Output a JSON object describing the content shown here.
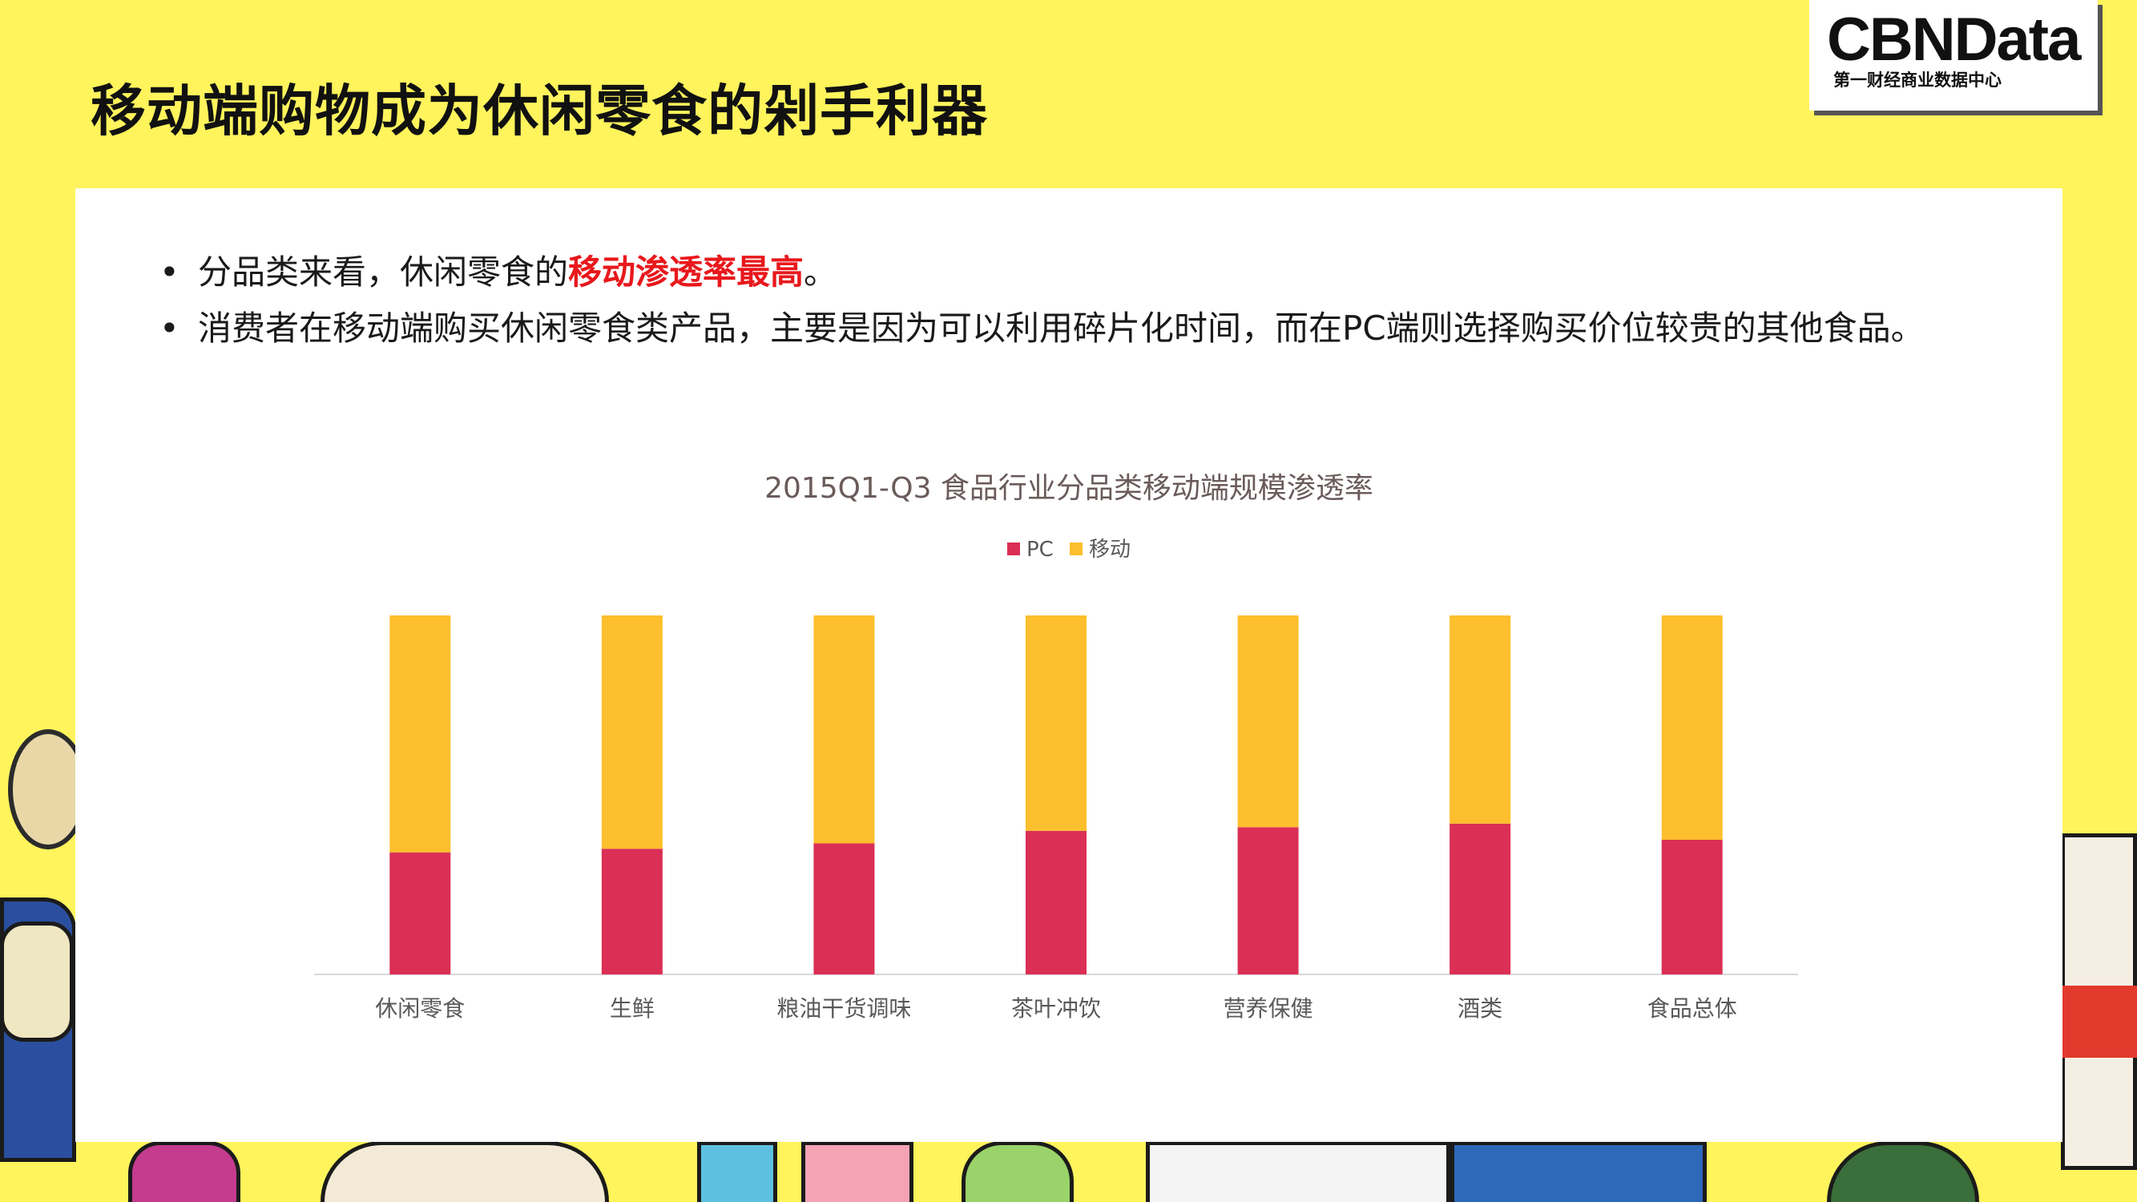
{
  "slide": {
    "title": "移动端购物成为休闲零食的剁手利器"
  },
  "logo": {
    "main": "CBNData",
    "sub": "第一财经商业数据中心"
  },
  "bullets": [
    {
      "before": "分品类来看，休闲零食的",
      "highlight": "移动渗透率最高",
      "after": "。"
    },
    {
      "before": "消费者在移动端购买休闲零食类产品，主要是因为可以利用碎片化时间，而在PC端则选择购买价位较贵的其他食品。",
      "highlight": "",
      "after": ""
    }
  ],
  "bullet_symbol": "•",
  "colors": {
    "background": "#FFF45C",
    "pc": "#DB2F55",
    "mobile": "#FDBF2D",
    "highlight": "#E8181C"
  },
  "chart_data": {
    "type": "bar",
    "stacked": true,
    "title": "2015Q1-Q3 食品行业分品类移动端规模渗透率",
    "categories": [
      "休闲零食",
      "生鲜",
      "粮油干货调味",
      "茶叶冲饮",
      "营养保健",
      "酒类",
      "食品总体"
    ],
    "series": [
      {
        "name": "PC",
        "color": "#DB2F55",
        "values": [
          34,
          35,
          36.5,
          40,
          41,
          42,
          37.5
        ]
      },
      {
        "name": "移动",
        "color": "#FDBF2D",
        "values": [
          66,
          65,
          63.5,
          60,
          59,
          58,
          62.5
        ]
      }
    ],
    "ylim": [
      0,
      100
    ],
    "legend_position": "top-center",
    "grid": false
  }
}
